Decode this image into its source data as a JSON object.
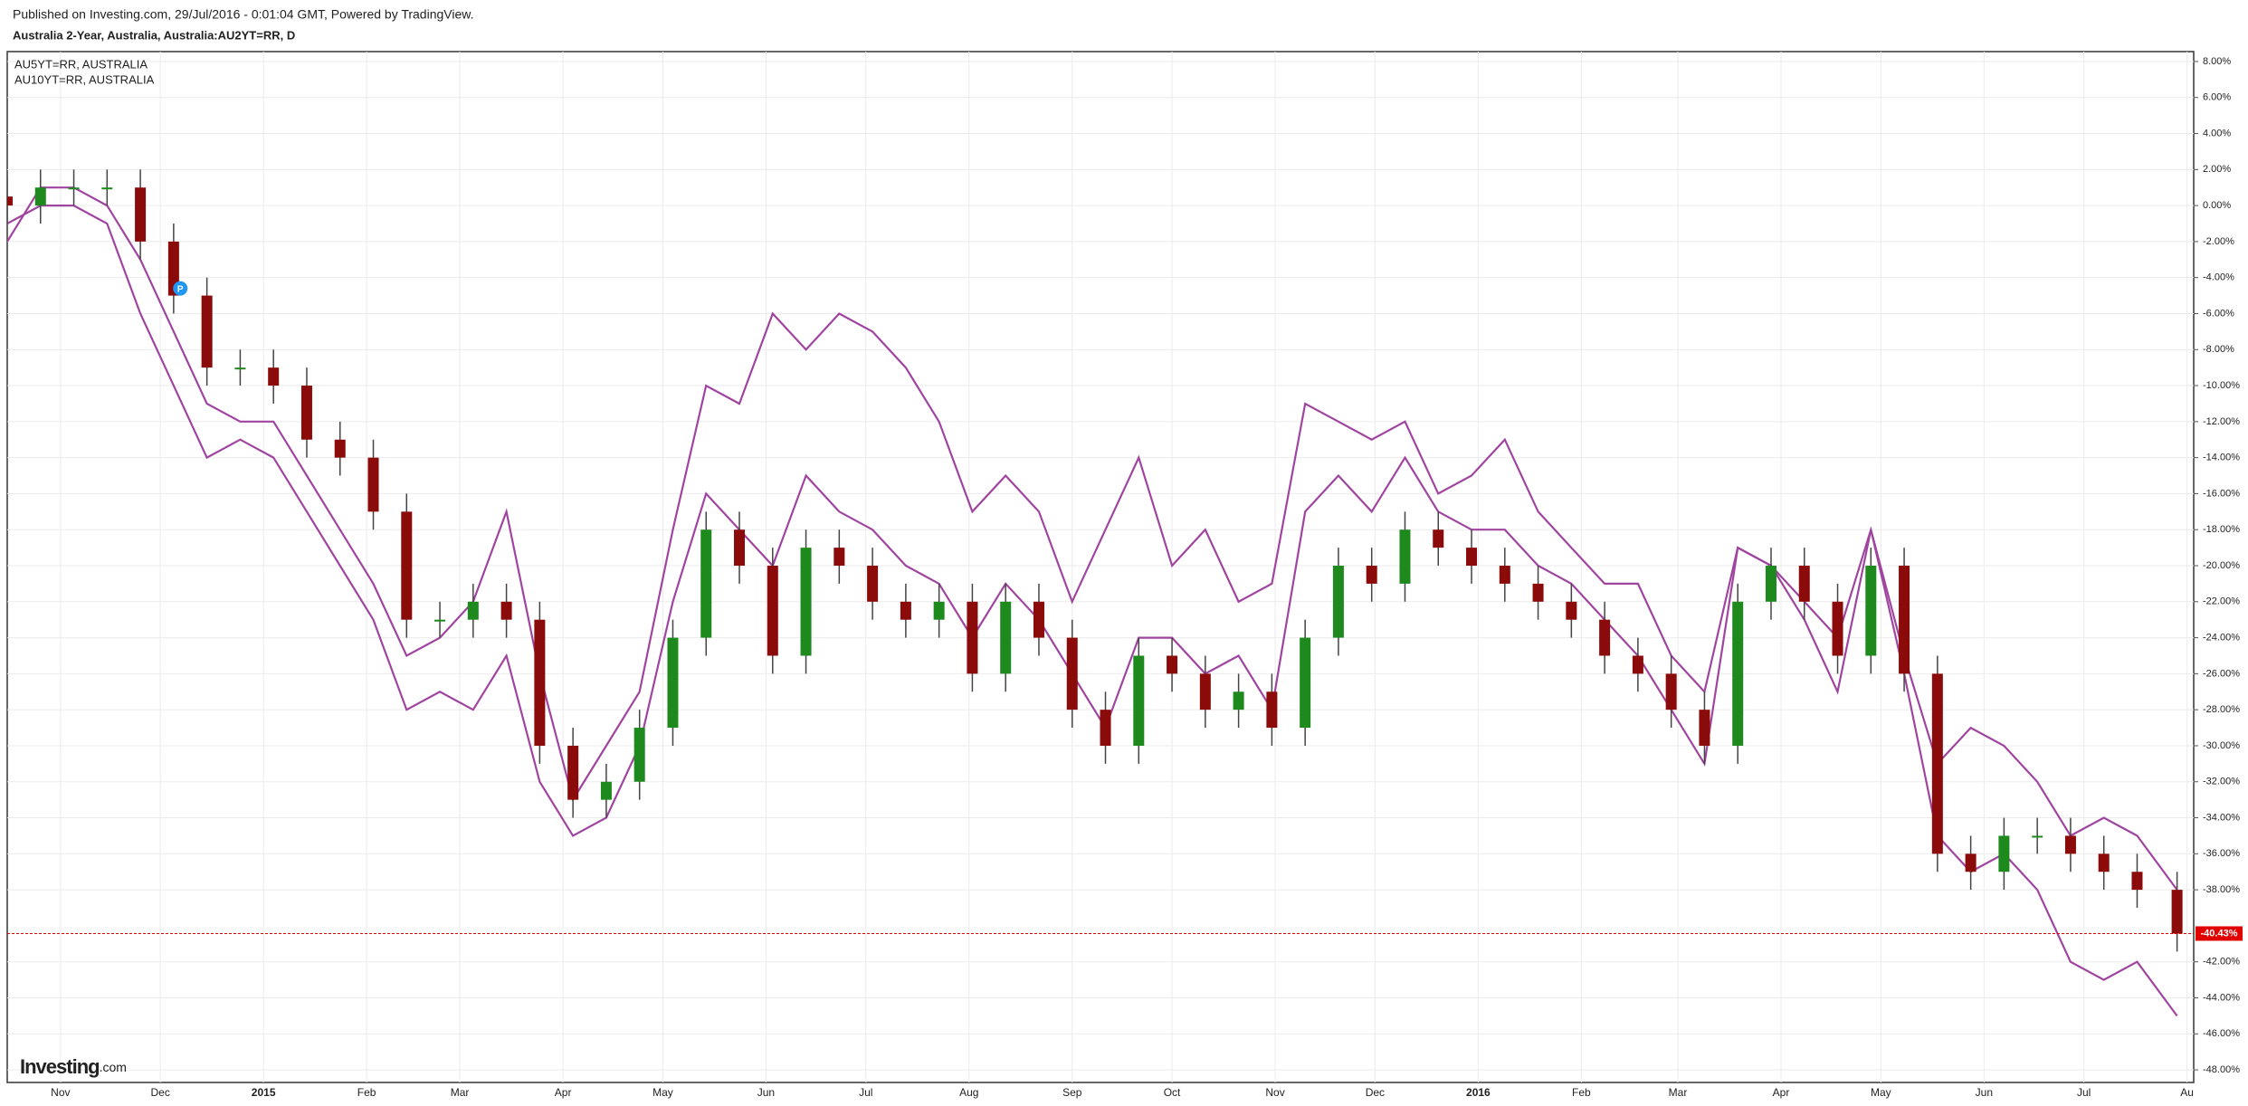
{
  "header": {
    "published": "Published on Investing.com, 29/Jul/2016 - 0:01:04 GMT, Powered by TradingView.",
    "logo": "Investing",
    "logo_suffix": ".com"
  },
  "chart_data": {
    "type": "candlestick",
    "title": "Australia 2-Year, Australia, Australia:AU2YT=RR, D",
    "x": [
      "2014-10-16",
      "2014-10-26",
      "2014-11-05",
      "2014-11-15",
      "2014-11-25",
      "2014-12-05",
      "2014-12-15",
      "2014-12-25",
      "2015-01-04",
      "2015-01-14",
      "2015-01-24",
      "2015-02-03",
      "2015-02-13",
      "2015-02-23",
      "2015-03-05",
      "2015-03-15",
      "2015-03-25",
      "2015-04-04",
      "2015-04-14",
      "2015-04-24",
      "2015-05-04",
      "2015-05-14",
      "2015-05-24",
      "2015-06-03",
      "2015-06-13",
      "2015-06-23",
      "2015-07-03",
      "2015-07-13",
      "2015-07-23",
      "2015-08-02",
      "2015-08-12",
      "2015-08-22",
      "2015-09-01",
      "2015-09-11",
      "2015-09-21",
      "2015-10-01",
      "2015-10-11",
      "2015-10-21",
      "2015-10-31",
      "2015-11-10",
      "2015-11-20",
      "2015-11-30",
      "2015-12-10",
      "2015-12-20",
      "2015-12-30",
      "2016-01-09",
      "2016-01-19",
      "2016-01-29",
      "2016-02-08",
      "2016-02-18",
      "2016-02-28",
      "2016-03-09",
      "2016-03-19",
      "2016-03-29",
      "2016-04-08",
      "2016-04-18",
      "2016-04-28",
      "2016-05-08",
      "2016-05-18",
      "2016-05-28",
      "2016-06-07",
      "2016-06-17",
      "2016-06-27",
      "2016-07-07",
      "2016-07-17",
      "2016-07-29"
    ],
    "open": [
      0.5,
      0,
      1,
      1,
      1,
      -2,
      -5,
      -9,
      -9,
      -10,
      -13,
      -14,
      -17,
      -23,
      -23,
      -22,
      -23,
      -30,
      -33,
      -32,
      -29,
      -24,
      -18,
      -20,
      -25,
      -19,
      -20,
      -22,
      -23,
      -22,
      -26,
      -22,
      -24,
      -28,
      -30,
      -25,
      -26,
      -28,
      -27,
      -29,
      -24,
      -20,
      -21,
      -18,
      -19,
      -20,
      -21,
      -22,
      -23,
      -25,
      -26,
      -28,
      -30,
      -22,
      -20,
      -22,
      -25,
      -20,
      -26,
      -36,
      -37,
      -35,
      -35,
      -36,
      -37,
      -38
    ],
    "high": [
      1.5,
      2,
      2,
      2,
      2,
      -1,
      -4,
      -8,
      -8,
      -9,
      -12,
      -13,
      -16,
      -22,
      -21,
      -21,
      -22,
      -29,
      -31,
      -28,
      -23,
      -17,
      -17,
      -19,
      -18,
      -18,
      -19,
      -21,
      -21,
      -21,
      -21,
      -21,
      -23,
      -27,
      -24,
      -24,
      -25,
      -26,
      -26,
      -23,
      -19,
      -19,
      -17,
      -17,
      -18,
      -19,
      -20,
      -21,
      -22,
      -24,
      -25,
      -27,
      -21,
      -19,
      -19,
      -21,
      -19,
      -19,
      -25,
      -35,
      -34,
      -34,
      -34,
      -35,
      -36,
      -37
    ],
    "low": [
      -1,
      -1,
      0,
      0,
      -3,
      -6,
      -10,
      -10,
      -11,
      -14,
      -15,
      -18,
      -24,
      -24,
      -24,
      -24,
      -31,
      -34,
      -34,
      -33,
      -30,
      -25,
      -21,
      -26,
      -26,
      -21,
      -23,
      -24,
      -24,
      -27,
      -27,
      -25,
      -29,
      -31,
      -31,
      -27,
      -29,
      -29,
      -30,
      -30,
      -25,
      -22,
      -22,
      -20,
      -21,
      -22,
      -23,
      -24,
      -26,
      -27,
      -29,
      -31,
      -31,
      -23,
      -23,
      -26,
      -26,
      -27,
      -37,
      -38,
      -38,
      -36,
      -37,
      -38,
      -39,
      -41.43
    ],
    "close": [
      0,
      1,
      1,
      1,
      -2,
      -5,
      -9,
      -9,
      -10,
      -13,
      -14,
      -17,
      -23,
      -23,
      -22,
      -23,
      -30,
      -33,
      -32,
      -29,
      -24,
      -18,
      -20,
      -25,
      -19,
      -20,
      -22,
      -23,
      -22,
      -26,
      -22,
      -24,
      -28,
      -30,
      -25,
      -26,
      -28,
      -27,
      -29,
      -24,
      -20,
      -21,
      -18,
      -19,
      -20,
      -21,
      -22,
      -23,
      -25,
      -26,
      -28,
      -30,
      -22,
      -20,
      -22,
      -25,
      -20,
      -26,
      -36,
      -37,
      -35,
      -35,
      -36,
      -37,
      -38,
      -40.43
    ],
    "up_color": "#1e8a1e",
    "down_color": "#8b0a0a",
    "series": [
      {
        "name": "AU5YT=RR, AUSTRALIA",
        "color": "#a0459f",
        "values": [
          -2,
          1,
          1,
          0,
          -3,
          -7,
          -11,
          -12,
          -12,
          -15,
          -18,
          -21,
          -25,
          -24,
          -22,
          -17,
          -26,
          -33,
          -30,
          -27,
          -18,
          -10,
          -11,
          -6,
          -8,
          -6,
          -7,
          -9,
          -12,
          -17,
          -15,
          -17,
          -22,
          -18,
          -14,
          -20,
          -18,
          -22,
          -21,
          -11,
          -12,
          -13,
          -12,
          -16,
          -15,
          -13,
          -17,
          -19,
          -21,
          -21,
          -25,
          -27,
          -19,
          -20,
          -22,
          -24,
          -18,
          -25,
          -31,
          -29,
          -30,
          -32,
          -35,
          -34,
          -35,
          -38
        ]
      },
      {
        "name": "AU10YT=RR, AUSTRALIA",
        "color": "#a0459f",
        "values": [
          -1,
          0,
          0,
          -1,
          -6,
          -10,
          -14,
          -13,
          -14,
          -17,
          -20,
          -23,
          -28,
          -27,
          -28,
          -25,
          -32,
          -35,
          -34,
          -30,
          -22,
          -16,
          -18,
          -20,
          -15,
          -17,
          -18,
          -20,
          -21,
          -24,
          -21,
          -23,
          -26,
          -29,
          -24,
          -24,
          -26,
          -25,
          -28,
          -17,
          -15,
          -17,
          -14,
          -17,
          -18,
          -18,
          -20,
          -21,
          -23,
          -25,
          -28,
          -31,
          -19,
          -20,
          -23,
          -27,
          -18,
          -26,
          -35,
          -37,
          -36,
          -38,
          -42,
          -43,
          -42,
          -45
        ]
      }
    ],
    "xlim": [
      "2014-10-16",
      "2016-08-03"
    ],
    "xticks": [
      {
        "value": "2014-11-01",
        "label": "Nov"
      },
      {
        "value": "2014-12-01",
        "label": "Dec"
      },
      {
        "value": "2015-01-01",
        "label": "2015"
      },
      {
        "value": "2015-02-01",
        "label": "Feb"
      },
      {
        "value": "2015-03-01",
        "label": "Mar"
      },
      {
        "value": "2015-04-01",
        "label": "Apr"
      },
      {
        "value": "2015-05-01",
        "label": "May"
      },
      {
        "value": "2015-06-01",
        "label": "Jun"
      },
      {
        "value": "2015-07-01",
        "label": "Jul"
      },
      {
        "value": "2015-08-01",
        "label": "Aug"
      },
      {
        "value": "2015-09-01",
        "label": "Sep"
      },
      {
        "value": "2015-10-01",
        "label": "Oct"
      },
      {
        "value": "2015-11-01",
        "label": "Nov"
      },
      {
        "value": "2015-12-01",
        "label": "Dec"
      },
      {
        "value": "2016-01-01",
        "label": "2016"
      },
      {
        "value": "2016-02-01",
        "label": "Feb"
      },
      {
        "value": "2016-03-01",
        "label": "Mar"
      },
      {
        "value": "2016-04-01",
        "label": "Apr"
      },
      {
        "value": "2016-05-01",
        "label": "May"
      },
      {
        "value": "2016-06-01",
        "label": "Jun"
      },
      {
        "value": "2016-07-01",
        "label": "Jul"
      },
      {
        "value": "2016-08-01",
        "label": "Au"
      }
    ],
    "ylim": [
      -48.7,
      8.55
    ],
    "yticks": [
      {
        "value": 8,
        "label": "8.00%"
      },
      {
        "value": 6,
        "label": "6.00%"
      },
      {
        "value": 4,
        "label": "4.00%"
      },
      {
        "value": 2,
        "label": "2.00%"
      },
      {
        "value": 0,
        "label": "0.00%"
      },
      {
        "value": -2,
        "label": "-2.00%"
      },
      {
        "value": -4,
        "label": "-4.00%"
      },
      {
        "value": -6,
        "label": "-6.00%"
      },
      {
        "value": -8,
        "label": "-8.00%"
      },
      {
        "value": -10,
        "label": "-10.00%"
      },
      {
        "value": -12,
        "label": "-12.00%"
      },
      {
        "value": -14,
        "label": "-14.00%"
      },
      {
        "value": -16,
        "label": "-16.00%"
      },
      {
        "value": -18,
        "label": "-18.00%"
      },
      {
        "value": -20,
        "label": "-20.00%"
      },
      {
        "value": -22,
        "label": "-22.00%"
      },
      {
        "value": -24,
        "label": "-24.00%"
      },
      {
        "value": -26,
        "label": "-26.00%"
      },
      {
        "value": -28,
        "label": "-28.00%"
      },
      {
        "value": -30,
        "label": "-30.00%"
      },
      {
        "value": -32,
        "label": "-32.00%"
      },
      {
        "value": -34,
        "label": "-34.00%"
      },
      {
        "value": -36,
        "label": "-36.00%"
      },
      {
        "value": -38,
        "label": "-38.00%"
      },
      {
        "value": -42,
        "label": "-42.00%"
      },
      {
        "value": -44,
        "label": "-44.00%"
      },
      {
        "value": -46,
        "label": "-46.00%"
      },
      {
        "value": -48,
        "label": "-48.00%"
      }
    ],
    "grid": true,
    "last_price": {
      "value": -40.43,
      "label": "-40.43%",
      "color": "#e00000"
    },
    "annotation": {
      "x": "2014-12-07",
      "value": -4.6,
      "label": "P",
      "color": "#2196f3"
    }
  }
}
